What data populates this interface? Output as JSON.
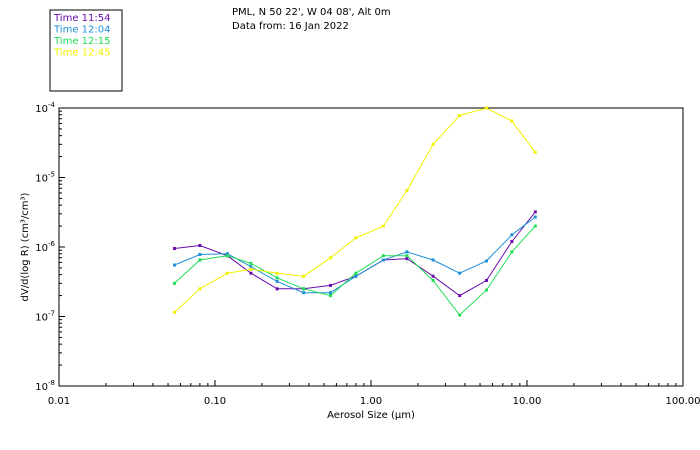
{
  "header": {
    "line1": "PML, N 50 22', W 04 08', Alt 0m",
    "line2": "Data from: 16 Jan 2022"
  },
  "chart_data": {
    "type": "line",
    "xscale": "log",
    "yscale": "log",
    "xlim": [
      0.01,
      100
    ],
    "ylim": [
      1e-08,
      0.0001
    ],
    "xlabel": "Aerosol Size (μm)",
    "ylabel": "dV/d(log R) (cm³/cm³)",
    "x_ticks": [
      {
        "value": 0.01,
        "label": "0.01"
      },
      {
        "value": 0.1,
        "label": "0.10"
      },
      {
        "value": 1,
        "label": "1.00"
      },
      {
        "value": 10,
        "label": "10.00"
      },
      {
        "value": 100,
        "label": "100.00"
      }
    ],
    "y_ticks": [
      {
        "value": 1e-08,
        "base": "10",
        "exp": "-8"
      },
      {
        "value": 1e-07,
        "base": "10",
        "exp": "-7"
      },
      {
        "value": 1e-06,
        "base": "10",
        "exp": "-6"
      },
      {
        "value": 1e-05,
        "base": "10",
        "exp": "-5"
      },
      {
        "value": 0.0001,
        "base": "10",
        "exp": "-4"
      }
    ],
    "x": [
      0.055,
      0.08,
      0.12,
      0.17,
      0.25,
      0.37,
      0.55,
      0.8,
      1.2,
      1.7,
      2.5,
      3.7,
      5.5,
      8.0,
      11.3
    ],
    "series": [
      {
        "name": "Time 11:54",
        "color": "#6a0dad",
        "values": [
          9.5e-07,
          1.05e-06,
          7.5e-07,
          4.2e-07,
          2.5e-07,
          2.5e-07,
          2.8e-07,
          3.8e-07,
          6.5e-07,
          6.8e-07,
          3.8e-07,
          2e-07,
          3.3e-07,
          1.2e-06,
          3.2e-06
        ]
      },
      {
        "name": "Time 12:04",
        "color": "#1e90d8",
        "values": [
          5.5e-07,
          7.8e-07,
          8e-07,
          5.2e-07,
          3.2e-07,
          2.2e-07,
          2.2e-07,
          3.8e-07,
          6.5e-07,
          8.5e-07,
          6.5e-07,
          4.2e-07,
          6.3e-07,
          1.5e-06,
          2.7e-06
        ]
      },
      {
        "name": "Time 12:15",
        "color": "#22dd55",
        "values": [
          3e-07,
          6.5e-07,
          7.5e-07,
          5.8e-07,
          3.6e-07,
          2.5e-07,
          2e-07,
          4.2e-07,
          7.5e-07,
          7.5e-07,
          3.3e-07,
          1.05e-07,
          2.4e-07,
          8.5e-07,
          2e-06
        ]
      },
      {
        "name": "Time 12:45",
        "color": "#f2f200",
        "values": [
          1.15e-07,
          2.5e-07,
          4.2e-07,
          4.8e-07,
          4.2e-07,
          3.8e-07,
          7e-07,
          1.35e-06,
          2e-06,
          6.5e-06,
          3e-05,
          7.8e-05,
          0.0001,
          6.5e-05,
          2.3e-05
        ]
      }
    ]
  }
}
